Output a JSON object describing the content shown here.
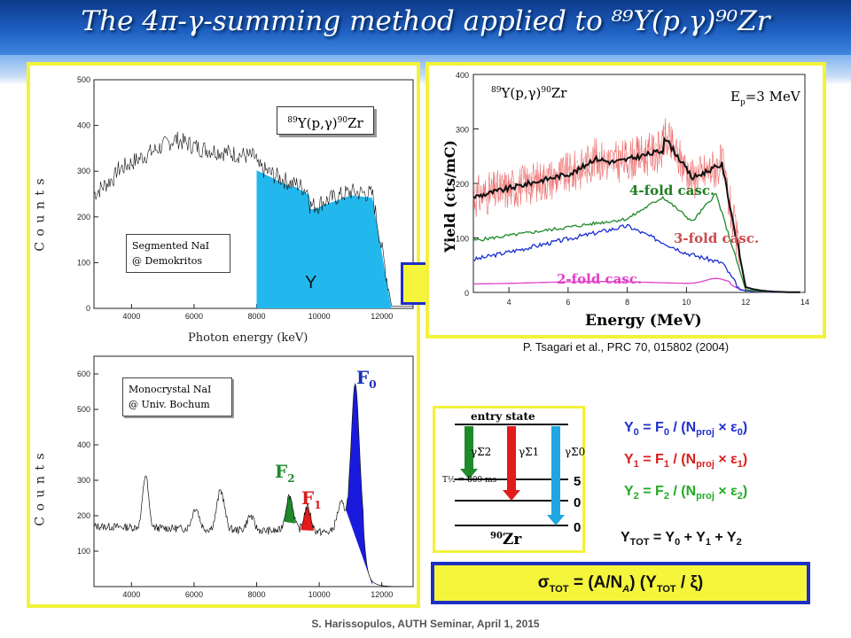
{
  "slide": {
    "title": "The 4π-γ-summing method applied to ⁸⁹Y(p,γ)⁹⁰Zr",
    "footer": "S. Harissopulos, AUTH Seminar, April 1, 2015",
    "reference": "P. Tsagari et al., PRC 70, 015802 (2004)"
  },
  "plot_top": {
    "reaction_label": "89Y(p,γ)90Zr",
    "reaction_parts": {
      "a": "89",
      "b": "Y(p,γ)",
      "c": "90",
      "d": "Zr"
    },
    "detector_label_line1": "Segmented NaI",
    "detector_label_line2": "@ Demokritos",
    "peak_label": "Y",
    "ylabel": "C o u n t s",
    "xlabel": "Photon energy  (keV)",
    "y_ticks": [
      "500",
      "400",
      "300",
      "200",
      "100",
      "0"
    ],
    "x_ticks": [
      "4000",
      "6000",
      "8000",
      "10000",
      "12000"
    ]
  },
  "plot_bottom": {
    "detector_label_line1": "Monocrystal NaI",
    "detector_label_line2": "@ Univ. Bochum",
    "ylabel": "C o u n t s",
    "y_ticks": [
      "600",
      "500",
      "400",
      "300",
      "200",
      "100"
    ],
    "x_ticks": [
      "4000",
      "6000",
      "8000",
      "10000",
      "12000"
    ],
    "peak_f0": "F",
    "peak_f0_sub": "0",
    "peak_f1": "F",
    "peak_f1_sub": "1",
    "peak_f2": "F",
    "peak_f2_sub": "2"
  },
  "plot_yield": {
    "reaction_parts": {
      "a": "89",
      "b": "Y(p,γ)",
      "c": "90",
      "d": "Zr"
    },
    "energy_label": "E",
    "energy_sub": "p",
    "energy_value": "=3 MeV",
    "ylabel": "Yield (cts/mC)",
    "xlabel": "Energy  (MeV)",
    "y_ticks": [
      "400",
      "300",
      "200",
      "100",
      "0"
    ],
    "x_ticks": [
      "4",
      "6",
      "8",
      "10",
      "12",
      "14"
    ],
    "label_4fold": "4-fold casc.",
    "label_3fold": "3-fold casc.",
    "label_2fold": "2-fold casc."
  },
  "level_scheme": {
    "entry_state": "entry state",
    "half_life": "T½ = 809 ms",
    "gamma_2": "γΣ2",
    "gamma_1": "γΣ1",
    "gamma_0": "γΣ0",
    "level_5": "5",
    "level_0a": "0",
    "level_0b": "0",
    "nucleus_mass": "90",
    "nucleus": "Zr"
  },
  "equations": {
    "y0": {
      "lhs": "Y",
      "lhs_sub": "0",
      "rhs": " = F",
      "rhs_sub": "0",
      "mid": " / (N",
      "proj": "proj",
      "times": " × ε",
      "eps_sub": "0",
      "close": ")",
      "color": "#1f2fcf"
    },
    "y1": {
      "lhs": "Y",
      "lhs_sub": "1",
      "rhs": " = F",
      "rhs_sub": "1",
      "mid": " / (N",
      "proj": "proj",
      "times": " × ε",
      "eps_sub": "1",
      "close": ")",
      "color": "#d81e1e"
    },
    "y2": {
      "lhs": "Y",
      "lhs_sub": "2",
      "rhs": " = F",
      "rhs_sub": "2",
      "mid": " / (N",
      "proj": "proj",
      "times": " × ε",
      "eps_sub": "2",
      "close": ")",
      "color": "#22aa22"
    },
    "ytot": "Y",
    "ytot_sub": "TOT",
    "ytot_rhs": " = Y",
    "ytot_rhs_0": "0",
    "ytot_plus1": " + Y",
    "ytot_rhs_1": "1",
    "ytot_plus2": " + Y",
    "ytot_rhs_2": "2",
    "sigma": "σ",
    "sigma_sub": "TOT",
    "sigma_mid": " =  (A/N",
    "sigma_na": "A",
    "sigma_y": ") (Y",
    "sigma_ysub": "TOT",
    "sigma_end": " / ξ)"
  },
  "colors": {
    "panel_border": "#f2f23a",
    "cyan_fill": "#22b8ee",
    "blue_peak": "#1a1adf",
    "green_peak": "#1f8a2a",
    "red_peak": "#e21b1b",
    "sigma_box": "#f5f53c"
  }
}
